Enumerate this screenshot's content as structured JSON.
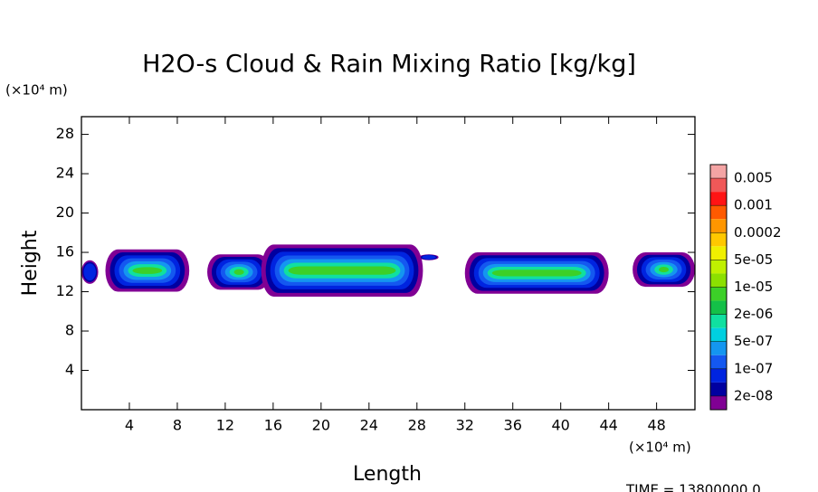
{
  "chart_data": {
    "type": "contour",
    "title": "H2O-s Cloud & Rain Mixing Ratio [kg/kg]",
    "xlabel": "Length",
    "ylabel": "Height",
    "xunit": "(×10⁴ m)",
    "yunit": "(×10⁴ m)",
    "footer": "TIME = 13800000.0",
    "xlim": [
      0,
      51.2
    ],
    "ylim": [
      0,
      29.8
    ],
    "xticks": [
      4,
      8,
      12,
      16,
      20,
      24,
      28,
      32,
      36,
      40,
      44,
      48
    ],
    "yticks": [
      4,
      8,
      12,
      16,
      20,
      24,
      28
    ],
    "colorbar": {
      "colors": [
        "#f4a4a4",
        "#f05858",
        "#ff1414",
        "#ff5a00",
        "#ff9600",
        "#ffc800",
        "#f0f000",
        "#c0f000",
        "#8ce000",
        "#3cd028",
        "#14c048",
        "#10e0a0",
        "#00d0e0",
        "#1496f0",
        "#1458f0",
        "#0024e0",
        "#0000a0",
        "#800094"
      ],
      "ticks": [
        0.005,
        0.001,
        0.0002,
        {
          "value": 5e-05,
          "label": "5e-05"
        },
        {
          "value": 1e-05,
          "label": "1e-05"
        },
        {
          "value": 2e-06,
          "label": "2e-06"
        },
        {
          "value": 5e-07,
          "label": "5e-07"
        },
        {
          "value": 1e-07,
          "label": "1e-07"
        },
        {
          "value": 2e-08,
          "label": "2e-08"
        }
      ]
    },
    "clouds": [
      {
        "x": [
          0,
          1.4
        ],
        "y": [
          12.8,
          15.2
        ]
      },
      {
        "x": [
          2,
          9
        ],
        "y": [
          12,
          16.3
        ]
      },
      {
        "x": [
          10.5,
          15.8
        ],
        "y": [
          12.2,
          15.8
        ]
      },
      {
        "x": [
          15,
          28.5
        ],
        "y": [
          11.5,
          16.8
        ]
      },
      {
        "x": [
          28.2,
          29.8
        ],
        "y": [
          15.2,
          15.8
        ]
      },
      {
        "x": [
          32,
          44
        ],
        "y": [
          11.8,
          16
        ]
      },
      {
        "x": [
          46,
          51.2
        ],
        "y": [
          12.5,
          16
        ]
      }
    ]
  }
}
